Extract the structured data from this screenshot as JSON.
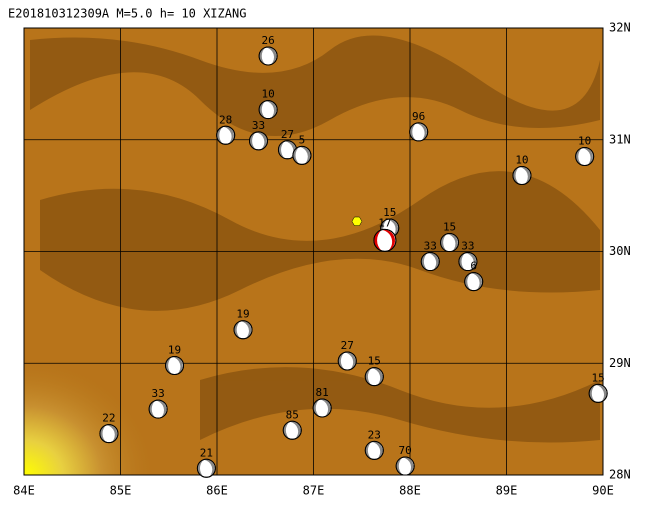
{
  "map": {
    "title": "E201810312309A M=5.0 h= 10 XIZANG",
    "xlim": [
      84,
      90
    ],
    "ylim": [
      28,
      32
    ],
    "xticks": [
      {
        "value": 84,
        "label": "84E"
      },
      {
        "value": 85,
        "label": "85E"
      },
      {
        "value": 86,
        "label": "86E"
      },
      {
        "value": 87,
        "label": "87E"
      },
      {
        "value": 88,
        "label": "88E"
      },
      {
        "value": 89,
        "label": "89E"
      },
      {
        "value": 90,
        "label": "90E"
      }
    ],
    "yticks": [
      {
        "value": 28,
        "label": "28N"
      },
      {
        "value": 29,
        "label": "29N"
      },
      {
        "value": 30,
        "label": "30N"
      },
      {
        "value": 31,
        "label": "31N"
      },
      {
        "value": 32,
        "label": "32N"
      }
    ],
    "epicenter": {
      "lon": 87.45,
      "lat": 30.27
    },
    "events": [
      {
        "label": "26",
        "lon": 86.53,
        "lat": 31.75
      },
      {
        "label": "10",
        "lon": 86.53,
        "lat": 31.27
      },
      {
        "label": "28",
        "lon": 86.09,
        "lat": 31.04
      },
      {
        "label": "33",
        "lon": 86.43,
        "lat": 30.99
      },
      {
        "label": "27",
        "lon": 86.73,
        "lat": 30.91
      },
      {
        "label": "5",
        "lon": 86.88,
        "lat": 30.86
      },
      {
        "label": "96",
        "lon": 88.09,
        "lat": 31.07
      },
      {
        "label": "10",
        "lon": 89.81,
        "lat": 30.85
      },
      {
        "label": "10",
        "lon": 89.16,
        "lat": 30.68
      },
      {
        "label": "15",
        "lon": 87.79,
        "lat": 30.21
      },
      {
        "label": "17",
        "lon": 87.74,
        "lat": 30.1,
        "main": true
      },
      {
        "label": "15",
        "lon": 88.41,
        "lat": 30.08
      },
      {
        "label": "33",
        "lon": 88.21,
        "lat": 29.91
      },
      {
        "label": "33",
        "lon": 88.6,
        "lat": 29.91
      },
      {
        "label": "6",
        "lon": 88.66,
        "lat": 29.73
      },
      {
        "label": "19",
        "lon": 86.27,
        "lat": 29.3
      },
      {
        "label": "19",
        "lon": 85.56,
        "lat": 28.98
      },
      {
        "label": "27",
        "lon": 87.35,
        "lat": 29.02
      },
      {
        "label": "15",
        "lon": 87.63,
        "lat": 28.88
      },
      {
        "label": "15",
        "lon": 89.95,
        "lat": 28.73
      },
      {
        "label": "33",
        "lon": 85.39,
        "lat": 28.59
      },
      {
        "label": "22",
        "lon": 84.88,
        "lat": 28.37
      },
      {
        "label": "81",
        "lon": 87.09,
        "lat": 28.6
      },
      {
        "label": "85",
        "lon": 86.78,
        "lat": 28.4
      },
      {
        "label": "23",
        "lon": 87.63,
        "lat": 28.22
      },
      {
        "label": "70",
        "lon": 87.95,
        "lat": 28.08
      },
      {
        "label": "21",
        "lon": 85.89,
        "lat": 28.06
      }
    ]
  }
}
